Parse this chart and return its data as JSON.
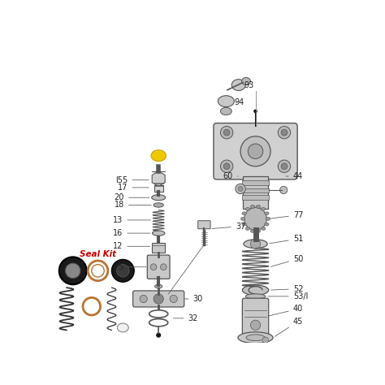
{
  "bg_color": "#ffffff",
  "line_color": "#555555",
  "red_color": "#cc0000",
  "yellow_color": "#f0c800",
  "copper_color": "#b87333",
  "seal_kit_label": "Seal Kit"
}
